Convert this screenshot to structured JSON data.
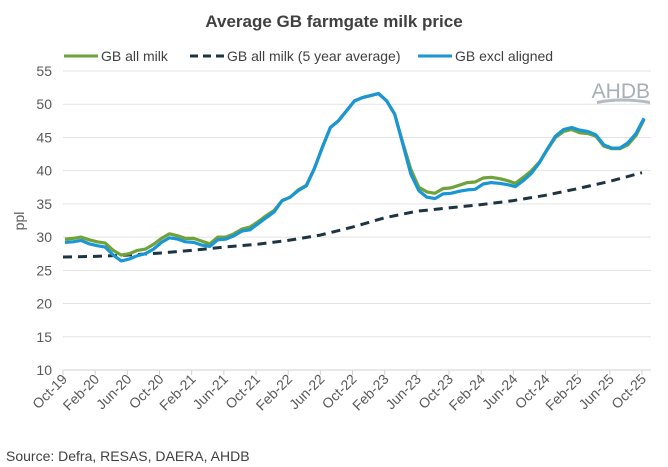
{
  "chart_data": {
    "type": "line",
    "title": "Average GB farmgate milk price",
    "ylabel": "ppl",
    "xlabel": "",
    "ylim": [
      10,
      55
    ],
    "yticks": [
      10,
      15,
      20,
      25,
      30,
      35,
      40,
      45,
      50,
      55
    ],
    "grid": true,
    "legend_position": "top",
    "xtick_labels": [
      "Oct-19",
      "Feb-20",
      "Jun-20",
      "Oct-20",
      "Feb-21",
      "Jun-21",
      "Oct-21",
      "Feb-22",
      "Jun-22",
      "Oct-22",
      "Feb-23",
      "Jun-23",
      "Oct-23",
      "Feb-24",
      "Jun-24",
      "Oct-24",
      "Feb-25",
      "Jun-25",
      "Oct-25"
    ],
    "x_start": "Oct-19",
    "x_frequency": "monthly",
    "series": [
      {
        "name": "GB all milk",
        "color": "#6fa23a",
        "style": "solid",
        "values": [
          29.7,
          29.8,
          30.0,
          29.6,
          29.3,
          29.1,
          28.0,
          27.3,
          27.5,
          28.0,
          28.2,
          28.9,
          29.8,
          30.5,
          30.2,
          29.8,
          29.8,
          29.4,
          29.0,
          30.0,
          30.0,
          30.5,
          31.2,
          31.5,
          32.3,
          33.2,
          34.0,
          35.5,
          36.0,
          37.1,
          37.8,
          40.3,
          43.5,
          46.5,
          47.5,
          49.0,
          50.5,
          51.0,
          51.3,
          51.6,
          50.5,
          48.5,
          44.2,
          40.2,
          37.5,
          36.8,
          36.6,
          37.3,
          37.4,
          37.8,
          38.2,
          38.3,
          38.9,
          39.0,
          38.8,
          38.5,
          38.1,
          39.0,
          40.0,
          41.3,
          43.2,
          45.0,
          45.9,
          46.2,
          45.7,
          45.6,
          45.2,
          43.7,
          43.3,
          43.3,
          43.9,
          45.3,
          47.7
        ]
      },
      {
        "name": "GB all milk (5 year average)",
        "color": "#1d3443",
        "style": "dashed",
        "x_points": [
          "Oct-19",
          "Feb-20",
          "Jun-20",
          "Oct-20",
          "Feb-21",
          "Jun-21",
          "Oct-21",
          "Feb-22",
          "Jun-22",
          "Oct-22",
          "Feb-23",
          "Jun-23",
          "Oct-23",
          "Feb-24",
          "Jun-24",
          "Oct-24",
          "Feb-25",
          "Jun-25",
          "Oct-25"
        ],
        "values": [
          27.0,
          27.1,
          27.3,
          27.6,
          28.0,
          28.5,
          28.9,
          29.5,
          30.3,
          31.5,
          32.9,
          33.9,
          34.4,
          34.9,
          35.5,
          36.3,
          37.3,
          38.4,
          39.7
        ]
      },
      {
        "name": "GB excl aligned",
        "color": "#1a96d4",
        "style": "solid",
        "values": [
          29.2,
          29.3,
          29.5,
          29.0,
          28.7,
          28.5,
          27.3,
          26.4,
          26.7,
          27.2,
          27.5,
          28.2,
          29.2,
          29.9,
          29.7,
          29.3,
          29.2,
          28.8,
          28.6,
          29.6,
          29.7,
          30.2,
          30.9,
          31.1,
          32.0,
          32.9,
          33.8,
          35.5,
          36.0,
          37.0,
          37.7,
          40.3,
          43.5,
          46.5,
          47.5,
          49.0,
          50.5,
          51.0,
          51.3,
          51.6,
          50.5,
          48.5,
          44.0,
          39.5,
          37.0,
          36.0,
          35.8,
          36.5,
          36.6,
          36.9,
          37.1,
          37.2,
          38.0,
          38.2,
          38.1,
          37.9,
          37.6,
          38.5,
          39.6,
          41.2,
          43.3,
          45.2,
          46.2,
          46.5,
          46.1,
          45.9,
          45.4,
          43.9,
          43.4,
          43.4,
          44.2,
          45.6,
          47.9
        ]
      }
    ]
  },
  "logo_text": "AHDB",
  "source": "Source: Defra, RESAS, DAERA, AHDB"
}
